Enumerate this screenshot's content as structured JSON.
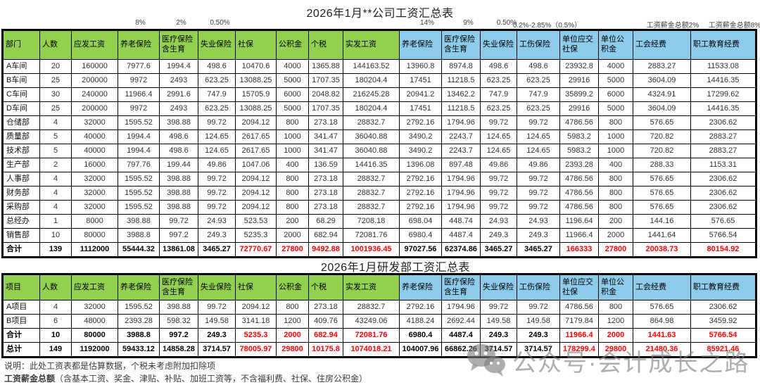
{
  "colors": {
    "header_green": "#92D050",
    "header_blue": "#8DCBEA",
    "total_red": "#FF0000"
  },
  "watermark": {
    "text": "公众号·会计成长之路"
  },
  "notes": {
    "line1": "说明：此处工资表都是估算数据，个税未考虑附加扣除项",
    "line2_bold": "工资薪金总额",
    "line2_rest": "（含基本工资、奖金、津贴、补贴、加班工资等，不含福利费、社保、住房公积金）"
  },
  "table1": {
    "title": "2026年1月**公司工资汇总表",
    "green_header_count": 10,
    "red_columns": [
      6,
      7,
      8,
      9,
      14,
      15,
      16,
      17
    ],
    "rate_labels": [
      {
        "col": 3,
        "text": "8%"
      },
      {
        "col": 4,
        "text": "2%"
      },
      {
        "col": 5,
        "text": "0.50%"
      },
      {
        "col": 10,
        "text": "14%"
      },
      {
        "col": 11,
        "text": "9%"
      },
      {
        "col": 12,
        "text": "0.50%"
      },
      {
        "col": 13,
        "text": "0.2%-2.85%（0.5%）"
      },
      {
        "col": 16,
        "text": "工资薪金总额2%"
      },
      {
        "col": 17,
        "text": "工资薪金总额8%"
      }
    ],
    "headers": [
      "部门",
      "人数",
      "应发工资",
      "养老保险",
      "医疗保险含生育",
      "失业保险",
      "社保",
      "公积金",
      "个税",
      "实发工资",
      "养老保险",
      "医疗保险含生育",
      "失业保险",
      "工伤保险",
      "单位应交社保",
      "单位公积金",
      "工会经费",
      "职工教育经费"
    ],
    "rows": [
      {
        "total": false,
        "cells": [
          "A车间",
          "20",
          "160000",
          "7977.6",
          "1994.4",
          "498.6",
          "10470.6",
          "4000",
          "1365.88",
          "144163.52",
          "13960.8",
          "8974.8",
          "498.6",
          "498.6",
          "23932.8",
          "4000",
          "2883.27",
          "11533.08"
        ]
      },
      {
        "total": false,
        "cells": [
          "B车间",
          "25",
          "200000",
          "9972",
          "2493",
          "623.25",
          "13088.25",
          "5000",
          "1707.35",
          "180204.4",
          "17451",
          "11218.5",
          "623.25",
          "623.25",
          "29916",
          "5000",
          "3604.09",
          "14416.35"
        ]
      },
      {
        "total": false,
        "cells": [
          "C车间",
          "30",
          "240000",
          "11966.4",
          "2991.6",
          "747.9",
          "15705.9",
          "6000",
          "2048.82",
          "216245.28",
          "20941.2",
          "13462.2",
          "747.9",
          "747.9",
          "35899.2",
          "6000",
          "4324.91",
          "17299.62"
        ]
      },
      {
        "total": false,
        "cells": [
          "D车间",
          "25",
          "200000",
          "9972",
          "2493",
          "623.25",
          "13088.25",
          "5000",
          "1707.35",
          "180204.4",
          "17451",
          "11218.5",
          "623.25",
          "623.25",
          "29916",
          "5000",
          "3604.09",
          "14416.35"
        ]
      },
      {
        "total": false,
        "cells": [
          "仓储部",
          "4",
          "32000",
          "1595.52",
          "398.88",
          "99.72",
          "2094.12",
          "800",
          "273.18",
          "28832.7",
          "2792.16",
          "1794.96",
          "99.72",
          "99.72",
          "4786.56",
          "800",
          "576.65",
          "2306.62"
        ]
      },
      {
        "total": false,
        "cells": [
          "质量部",
          "5",
          "40000",
          "1994.4",
          "498.6",
          "124.65",
          "2617.65",
          "1000",
          "341.47",
          "36040.88",
          "3490.2",
          "2243.7",
          "124.65",
          "124.65",
          "5983.2",
          "1000",
          "720.82",
          "2883.27"
        ]
      },
      {
        "total": false,
        "cells": [
          "技术部",
          "5",
          "40000",
          "1994.4",
          "498.6",
          "124.65",
          "2617.65",
          "1000",
          "341.47",
          "36040.88",
          "3490.2",
          "2243.7",
          "124.65",
          "124.65",
          "5983.2",
          "1000",
          "720.82",
          "2883.27"
        ]
      },
      {
        "total": false,
        "cells": [
          "生产部",
          "2",
          "16000",
          "797.76",
          "199.44",
          "49.86",
          "1047.06",
          "400",
          "136.59",
          "14416.35",
          "1396.08",
          "897.48",
          "49.86",
          "49.86",
          "2393.28",
          "400",
          "288.33",
          "1153.31"
        ]
      },
      {
        "total": false,
        "cells": [
          "人事部",
          "4",
          "32000",
          "1595.52",
          "398.88",
          "99.72",
          "2094.12",
          "800",
          "273.18",
          "28832.7",
          "2792.16",
          "1794.96",
          "99.72",
          "99.72",
          "4786.56",
          "800",
          "576.65",
          "2306.62"
        ]
      },
      {
        "total": false,
        "cells": [
          "财务部",
          "4",
          "32000",
          "1595.52",
          "398.88",
          "99.72",
          "2094.12",
          "800",
          "273.18",
          "28832.7",
          "2792.16",
          "1794.96",
          "99.72",
          "99.72",
          "4786.56",
          "800",
          "576.65",
          "2306.62"
        ]
      },
      {
        "total": false,
        "cells": [
          "采购部",
          "4",
          "32000",
          "1595.52",
          "398.88",
          "99.72",
          "2094.12",
          "800",
          "273.18",
          "28832.7",
          "2792.16",
          "1794.96",
          "99.72",
          "99.72",
          "4786.56",
          "800",
          "576.65",
          "2306.62"
        ]
      },
      {
        "total": false,
        "cells": [
          "总经办",
          "1",
          "8000",
          "398.88",
          "99.72",
          "24.93",
          "523.53",
          "200",
          "68.29",
          "7208.18",
          "698.04",
          "448.74",
          "24.93",
          "24.93",
          "1196.64",
          "200",
          "144.16",
          "576.65"
        ]
      },
      {
        "total": false,
        "cells": [
          "销售部",
          "10",
          "80000",
          "3988.8",
          "997.2",
          "249.3",
          "5235.3",
          "2000",
          "682.94",
          "72081.76",
          "6980.4",
          "4487.4",
          "249.3",
          "249.3",
          "11966.4",
          "2000",
          "1441.64",
          "5766.54"
        ]
      },
      {
        "total": true,
        "cells": [
          "合计",
          "139",
          "1112000",
          "55444.32",
          "13861.08",
          "3465.27",
          "72770.67",
          "27800",
          "9492.88",
          "1001936.45",
          "97027.56",
          "62374.86",
          "3465.27",
          "3465.27",
          "166333",
          "27800",
          "20038.73",
          "80154.92"
        ]
      }
    ]
  },
  "table2": {
    "title": "2026年1月研发部工资汇总表",
    "green_header_count": 10,
    "red_columns": [
      6,
      7,
      8,
      9,
      14,
      15,
      16,
      17
    ],
    "headers": [
      "项目",
      "人数",
      "应发工资",
      "养老保险",
      "医疗保险含生育",
      "失业保险",
      "社保",
      "公积金",
      "个税",
      "实发工资",
      "养老保险",
      "医疗保险含生育",
      "失业保险",
      "工伤保险",
      "单位应交社保",
      "单位公积金",
      "工会经费",
      "职工教育经费"
    ],
    "rows": [
      {
        "total": false,
        "cells": [
          "A项目",
          "4",
          "32000",
          "1595.52",
          "398.88",
          "99.72",
          "2094.12",
          "800",
          "273.18",
          "28832.7",
          "2792.16",
          "1794.96",
          "99.72",
          "99.72",
          "4786.56",
          "800",
          "576.65",
          "2306.62"
        ]
      },
      {
        "total": false,
        "cells": [
          "B项目",
          "6",
          "48000",
          "2393.28",
          "598.32",
          "149.58",
          "3141.18",
          "1200",
          "409.76",
          "43249.06",
          "4188.24",
          "2692.44",
          "149.58",
          "149.58",
          "7179.84",
          "1200",
          "864.98",
          "3459.92"
        ]
      },
      {
        "total": true,
        "cells": [
          "合计",
          "10",
          "80000",
          "3988.8",
          "997.2",
          "249.3",
          "5235.3",
          "2000",
          "682.94",
          "72081.76",
          "6980.4",
          "4487.4",
          "249.3",
          "249.3",
          "11966.4",
          "2000",
          "1441.63",
          "5766.54"
        ]
      },
      {
        "total": true,
        "cells": [
          "总计",
          "149",
          "1192000",
          "59433.12",
          "14858.28",
          "3714.57",
          "78005.97",
          "29800",
          "10175.8",
          "1074018.21",
          "104007.96",
          "66862.26",
          "3714.57",
          "3714.57",
          "178299.4",
          "29800",
          "21480.36",
          "85921.46"
        ]
      }
    ]
  }
}
